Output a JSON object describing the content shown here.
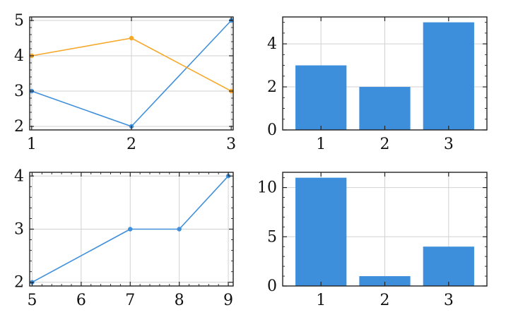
{
  "colors": {
    "blue": "#3f8fdb",
    "orange": "#f7a829",
    "bar": "#3d8fdc"
  },
  "chart_data": [
    {
      "type": "line",
      "title": "",
      "xlabel": "",
      "ylabel": "",
      "grid": true,
      "xlim": [
        0.98,
        3.02
      ],
      "ylim": [
        1.9,
        5.1
      ],
      "xticks": [
        1,
        2,
        3
      ],
      "yticks": [
        2,
        3,
        4,
        5
      ],
      "xminor": [],
      "yminor": [
        2.2,
        2.4,
        2.6,
        2.8,
        3.2,
        3.4,
        3.6,
        3.8,
        4.2,
        4.4,
        4.6,
        4.8
      ],
      "series": [
        {
          "color": "#3f8fdb",
          "x": [
            1,
            2,
            3
          ],
          "y": [
            3,
            2,
            5
          ]
        },
        {
          "color": "#f7a829",
          "x": [
            1,
            2,
            3
          ],
          "y": [
            4,
            4.5,
            3
          ]
        }
      ]
    },
    {
      "type": "bar",
      "title": "",
      "xlabel": "",
      "ylabel": "",
      "grid": true,
      "categories": [
        1,
        2,
        3
      ],
      "values": [
        3,
        2,
        5
      ],
      "bar_width": 0.8,
      "xlim": [
        0.4,
        3.6
      ],
      "ylim": [
        0,
        5.25
      ],
      "xticks": [
        1,
        2,
        3
      ],
      "yticks": [
        0,
        2,
        4
      ],
      "xminor": [],
      "yminor": [
        0.5,
        1,
        1.5,
        2.5,
        3,
        3.5,
        4.5,
        5
      ]
    },
    {
      "type": "line",
      "title": "",
      "xlabel": "",
      "ylabel": "",
      "grid": true,
      "xlim": [
        4.95,
        9.1
      ],
      "ylim": [
        1.93,
        4.07
      ],
      "xticks": [
        5,
        6,
        7,
        8,
        9
      ],
      "yticks": [
        2,
        3,
        4
      ],
      "xminor": [
        5.2,
        5.4,
        5.6,
        5.8,
        6.2,
        6.4,
        6.6,
        6.8,
        7.2,
        7.4,
        7.6,
        7.8,
        8.2,
        8.4,
        8.6,
        8.8
      ],
      "yminor": [
        2.2,
        2.4,
        2.6,
        2.8,
        3.2,
        3.4,
        3.6,
        3.8
      ],
      "series": [
        {
          "color": "#3f8fdb",
          "x": [
            5,
            7,
            8,
            9
          ],
          "y": [
            2,
            3,
            3,
            4
          ]
        }
      ]
    },
    {
      "type": "bar",
      "title": "",
      "xlabel": "",
      "ylabel": "",
      "grid": true,
      "categories": [
        1,
        2,
        3
      ],
      "values": [
        11,
        1,
        4
      ],
      "bar_width": 0.8,
      "xlim": [
        0.4,
        3.6
      ],
      "ylim": [
        0,
        11.55
      ],
      "xticks": [
        1,
        2,
        3
      ],
      "yticks": [
        0,
        5,
        10
      ],
      "xminor": [],
      "yminor": [
        1,
        2,
        3,
        4,
        6,
        7,
        8,
        9,
        11
      ]
    }
  ]
}
